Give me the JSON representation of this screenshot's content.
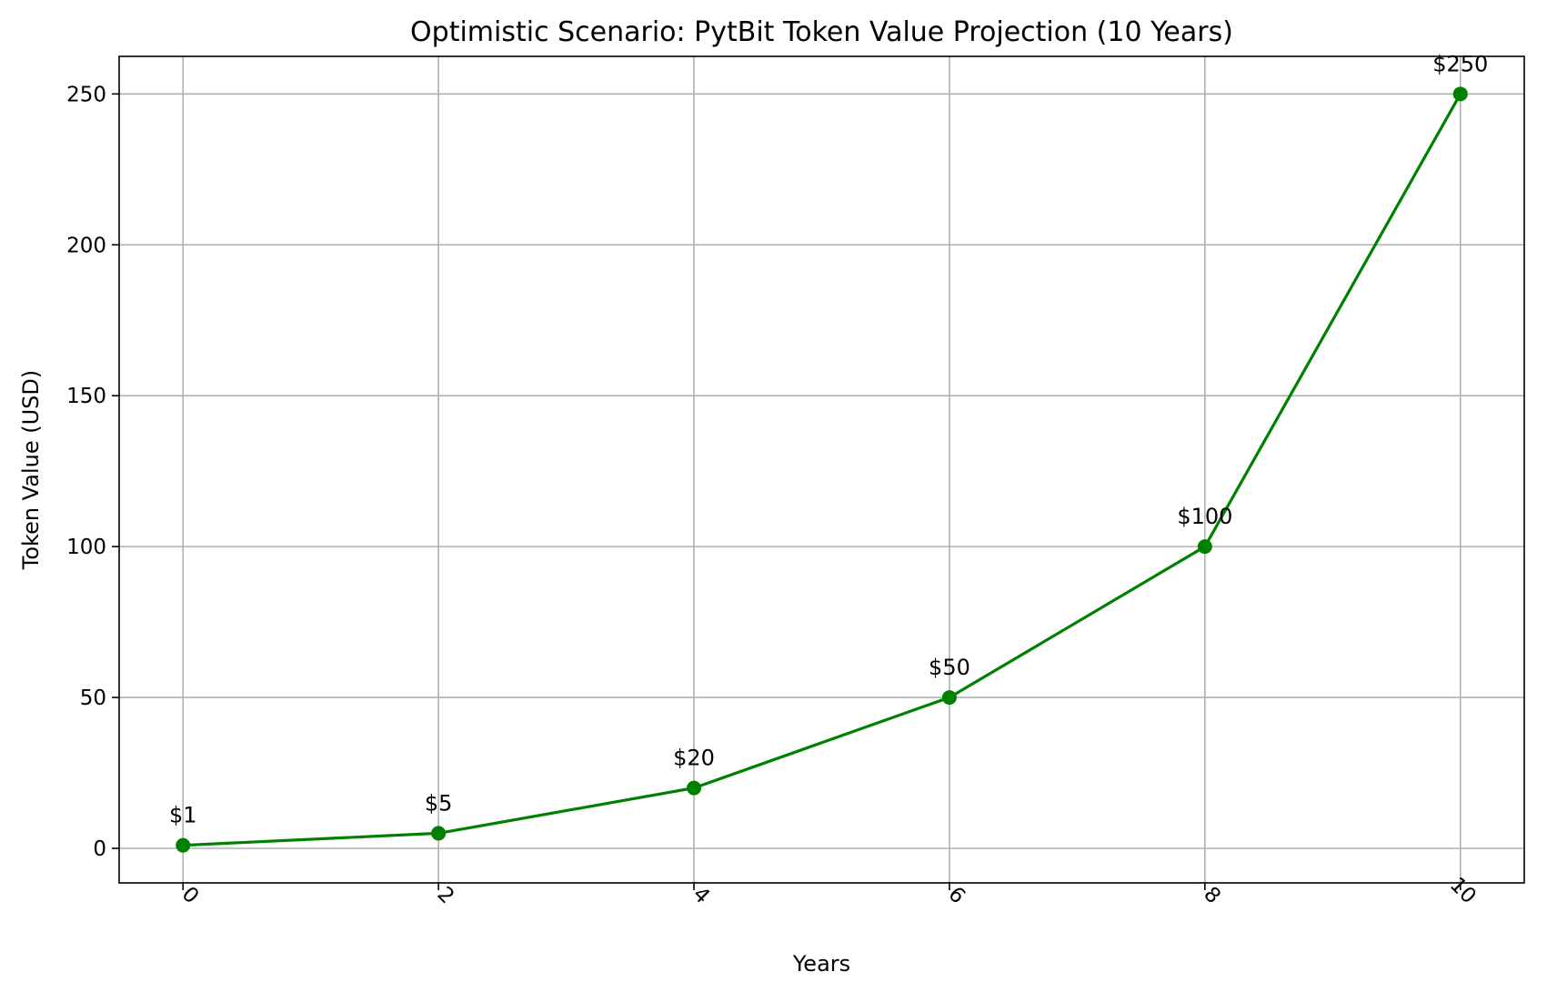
{
  "chart_data": {
    "type": "line",
    "title": "Optimistic Scenario: PytBit Token Value Projection (10 Years)",
    "xlabel": "Years",
    "ylabel": "Token Value (USD)",
    "xlim": [
      -0.5,
      10.5
    ],
    "ylim": [
      -11.45,
      262.45
    ],
    "x_ticks": [
      0,
      2,
      4,
      6,
      8,
      10
    ],
    "y_ticks": [
      0,
      50,
      100,
      150,
      200,
      250
    ],
    "x_tick_rotation": 45,
    "grid": true,
    "legend": "none",
    "series": [
      {
        "color": "#008000",
        "marker": "circle",
        "x": [
          0,
          2,
          4,
          6,
          8,
          10
        ],
        "y": [
          1,
          5,
          20,
          50,
          100,
          250
        ],
        "labels": [
          "$1",
          "$5",
          "$20",
          "$50",
          "$100",
          "$250"
        ]
      }
    ]
  }
}
